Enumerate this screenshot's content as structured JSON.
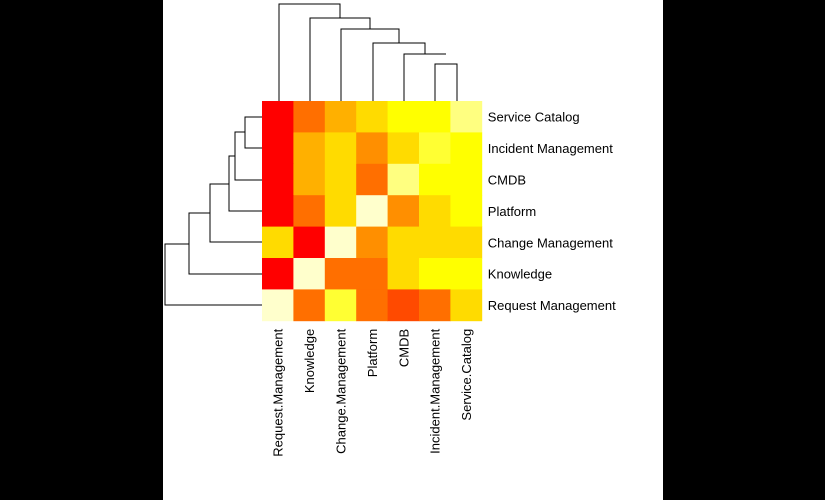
{
  "chart_data": {
    "type": "heatmap",
    "title": "",
    "xlabel": "",
    "ylabel": "",
    "grid": false,
    "legend": "none",
    "rows": [
      "Service Catalog",
      "Incident Management",
      "CMDB",
      "Platform",
      "Change Management",
      "Knowledge",
      "Request Management"
    ],
    "columns": [
      "Request.Management",
      "Knowledge",
      "Change.Management",
      "Platform",
      "CMDB",
      "Incident.Management",
      "Service.Catalog"
    ],
    "colors": {
      "red": "#FF0000",
      "orange_dark": "#FF4A00",
      "orange": "#FF6F00",
      "orange_mid": "#FF8F00",
      "amber": "#FFB000",
      "gold": "#FFDB00",
      "yellow": "#FFFF00",
      "yellow_light": "#FFFF33",
      "yellow_pale": "#FFFF80",
      "cream": "#FFFFCC"
    },
    "cell_colors": [
      [
        "#FF0000",
        "#FF6F00",
        "#FFB000",
        "#FFDB00",
        "#FFFF00",
        "#FFFF00",
        "#FFFF80"
      ],
      [
        "#FF0000",
        "#FFB000",
        "#FFDB00",
        "#FF8F00",
        "#FFDB00",
        "#FFFF33",
        "#FFFF00"
      ],
      [
        "#FF0000",
        "#FFB000",
        "#FFDB00",
        "#FF6F00",
        "#FFFF80",
        "#FFFF00",
        "#FFFF00"
      ],
      [
        "#FF0000",
        "#FF6F00",
        "#FFDB00",
        "#FFFFCC",
        "#FF8F00",
        "#FFDB00",
        "#FFFF00"
      ],
      [
        "#FFDB00",
        "#FF0000",
        "#FFFFCC",
        "#FF8F00",
        "#FFDB00",
        "#FFDB00",
        "#FFDB00"
      ],
      [
        "#FF0000",
        "#FFFFCC",
        "#FF6F00",
        "#FF6F00",
        "#FFDB00",
        "#FFFF00",
        "#FFFF00"
      ],
      [
        "#FFFFCC",
        "#FF6F00",
        "#FFFF33",
        "#FF6F00",
        "#FF4A00",
        "#FF6F00",
        "#FFDB00"
      ]
    ]
  }
}
